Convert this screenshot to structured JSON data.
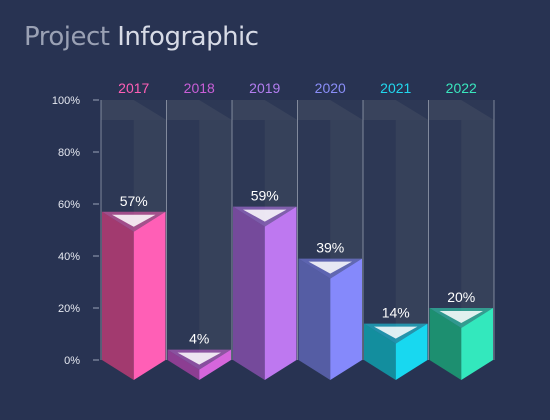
{
  "header": {
    "title_part1": "Project",
    "title_part2": "Infographic"
  },
  "chart_data": {
    "type": "bar",
    "title": "Project Infographic",
    "xlabel": "",
    "ylabel": "",
    "ylim": [
      0,
      100
    ],
    "y_ticks": [
      "0%",
      "20%",
      "40%",
      "60%",
      "80%",
      "100%"
    ],
    "categories": [
      "2017",
      "2018",
      "2019",
      "2020",
      "2021",
      "2022"
    ],
    "values": [
      57,
      4,
      59,
      39,
      14,
      20
    ],
    "value_labels": [
      "57%",
      "4%",
      "59%",
      "39%",
      "14%",
      "20%"
    ],
    "grid": false,
    "colors": {
      "front": [
        "#ff5fb6",
        "#d566dc",
        "#be78f0",
        "#8589fb",
        "#18d8f0",
        "#33e8bd"
      ],
      "side": [
        "#a23a6f",
        "#8c3e92",
        "#754a9b",
        "#555da4",
        "#138e9e",
        "#1d8f70"
      ],
      "labels": [
        "#ff5fb6",
        "#c95fd8",
        "#b37ef0",
        "#8a8ef8",
        "#22d7ee",
        "#39e7be"
      ],
      "track": "#3e485f",
      "axis": "#9aa3b8",
      "background": "#283352"
    }
  }
}
